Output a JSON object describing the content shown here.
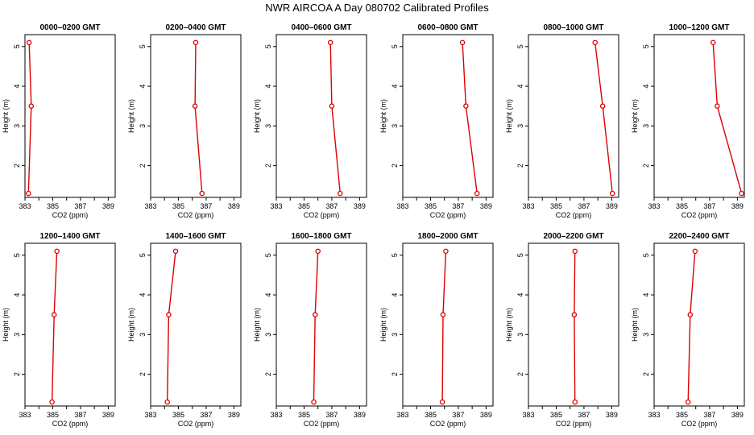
{
  "figure": {
    "title": "NWR AIRCOA A  Day 080702  Calibrated Profiles"
  },
  "colors": {
    "series": "#dd0000",
    "axes": "#000000",
    "background": "#ffffff"
  },
  "chart_data": [
    {
      "type": "line",
      "title": "0000–0200 GMT",
      "xlabel": "CO2 (ppm)",
      "ylabel": "Height (m)",
      "xlim": [
        383,
        389.5
      ],
      "ylim": [
        1.2,
        5.3
      ],
      "xticks": [
        383,
        385,
        387,
        389
      ],
      "yticks": [
        2,
        3,
        4,
        5
      ],
      "grid": false,
      "x": [
        383.3,
        383.45,
        383.25
      ],
      "y": [
        5.1,
        3.5,
        1.3
      ]
    },
    {
      "type": "line",
      "title": "0200–0400 GMT",
      "xlabel": "CO2 (ppm)",
      "ylabel": "Height (m)",
      "xlim": [
        383,
        389.5
      ],
      "ylim": [
        1.2,
        5.3
      ],
      "xticks": [
        383,
        385,
        387,
        389
      ],
      "yticks": [
        2,
        3,
        4,
        5
      ],
      "grid": false,
      "x": [
        386.25,
        386.2,
        386.7
      ],
      "y": [
        5.1,
        3.5,
        1.3
      ]
    },
    {
      "type": "line",
      "title": "0400–0600 GMT",
      "xlabel": "CO2 (ppm)",
      "ylabel": "Height (m)",
      "xlim": [
        383,
        389.5
      ],
      "ylim": [
        1.2,
        5.3
      ],
      "xticks": [
        383,
        385,
        387,
        389
      ],
      "yticks": [
        2,
        3,
        4,
        5
      ],
      "grid": false,
      "x": [
        386.9,
        387.0,
        387.6
      ],
      "y": [
        5.1,
        3.5,
        1.3
      ]
    },
    {
      "type": "line",
      "title": "0600–0800 GMT",
      "xlabel": "CO2 (ppm)",
      "ylabel": "Height (m)",
      "xlim": [
        383,
        389.5
      ],
      "ylim": [
        1.2,
        5.3
      ],
      "xticks": [
        383,
        385,
        387,
        389
      ],
      "yticks": [
        2,
        3,
        4,
        5
      ],
      "grid": false,
      "x": [
        387.3,
        387.55,
        388.35
      ],
      "y": [
        5.1,
        3.5,
        1.3
      ]
    },
    {
      "type": "line",
      "title": "0800–1000 GMT",
      "xlabel": "CO2 (ppm)",
      "ylabel": "Height (m)",
      "xlim": [
        383,
        389.5
      ],
      "ylim": [
        1.2,
        5.3
      ],
      "xticks": [
        383,
        385,
        387,
        389
      ],
      "yticks": [
        2,
        3,
        4,
        5
      ],
      "grid": false,
      "x": [
        387.8,
        388.35,
        389.05
      ],
      "y": [
        5.1,
        3.5,
        1.3
      ]
    },
    {
      "type": "line",
      "title": "1000–1200 GMT",
      "xlabel": "CO2 (ppm)",
      "ylabel": "Height (m)",
      "xlim": [
        383,
        389.5
      ],
      "ylim": [
        1.2,
        5.3
      ],
      "xticks": [
        383,
        385,
        387,
        389
      ],
      "yticks": [
        2,
        3,
        4,
        5
      ],
      "grid": false,
      "x": [
        387.25,
        387.55,
        389.3
      ],
      "y": [
        5.1,
        3.5,
        1.3
      ]
    },
    {
      "type": "line",
      "title": "1200–1400 GMT",
      "xlabel": "CO2 (ppm)",
      "ylabel": "Height (m)",
      "xlim": [
        383,
        389.5
      ],
      "ylim": [
        1.2,
        5.3
      ],
      "xticks": [
        383,
        385,
        387,
        389
      ],
      "yticks": [
        2,
        3,
        4,
        5
      ],
      "grid": false,
      "x": [
        385.3,
        385.1,
        384.95
      ],
      "y": [
        5.1,
        3.5,
        1.3
      ]
    },
    {
      "type": "line",
      "title": "1400–1600 GMT",
      "xlabel": "CO2 (ppm)",
      "ylabel": "Height (m)",
      "xlim": [
        383,
        389.5
      ],
      "ylim": [
        1.2,
        5.3
      ],
      "xticks": [
        383,
        385,
        387,
        389
      ],
      "yticks": [
        2,
        3,
        4,
        5
      ],
      "grid": false,
      "x": [
        384.8,
        384.3,
        384.2
      ],
      "y": [
        5.1,
        3.5,
        1.3
      ]
    },
    {
      "type": "line",
      "title": "1600–1800 GMT",
      "xlabel": "CO2 (ppm)",
      "ylabel": "Height (m)",
      "xlim": [
        383,
        389.5
      ],
      "ylim": [
        1.2,
        5.3
      ],
      "xticks": [
        383,
        385,
        387,
        389
      ],
      "yticks": [
        2,
        3,
        4,
        5
      ],
      "grid": false,
      "x": [
        386.0,
        385.8,
        385.7
      ],
      "y": [
        5.1,
        3.5,
        1.3
      ]
    },
    {
      "type": "line",
      "title": "1800–2000 GMT",
      "xlabel": "CO2 (ppm)",
      "ylabel": "Height (m)",
      "xlim": [
        383,
        389.5
      ],
      "ylim": [
        1.2,
        5.3
      ],
      "xticks": [
        383,
        385,
        387,
        389
      ],
      "yticks": [
        2,
        3,
        4,
        5
      ],
      "grid": false,
      "x": [
        386.1,
        385.9,
        385.85
      ],
      "y": [
        5.1,
        3.5,
        1.3
      ]
    },
    {
      "type": "line",
      "title": "2000–2200 GMT",
      "xlabel": "CO2 (ppm)",
      "ylabel": "Height (m)",
      "xlim": [
        383,
        389.5
      ],
      "ylim": [
        1.2,
        5.3
      ],
      "xticks": [
        383,
        385,
        387,
        389
      ],
      "yticks": [
        2,
        3,
        4,
        5
      ],
      "grid": false,
      "x": [
        386.35,
        386.3,
        386.35
      ],
      "y": [
        5.1,
        3.5,
        1.3
      ]
    },
    {
      "type": "line",
      "title": "2200–2400 GMT",
      "xlabel": "CO2 (ppm)",
      "ylabel": "Height (m)",
      "xlim": [
        383,
        389.5
      ],
      "ylim": [
        1.2,
        5.3
      ],
      "xticks": [
        383,
        385,
        387,
        389
      ],
      "yticks": [
        2,
        3,
        4,
        5
      ],
      "grid": false,
      "x": [
        385.95,
        385.6,
        385.45
      ],
      "y": [
        5.1,
        3.5,
        1.3
      ]
    }
  ]
}
